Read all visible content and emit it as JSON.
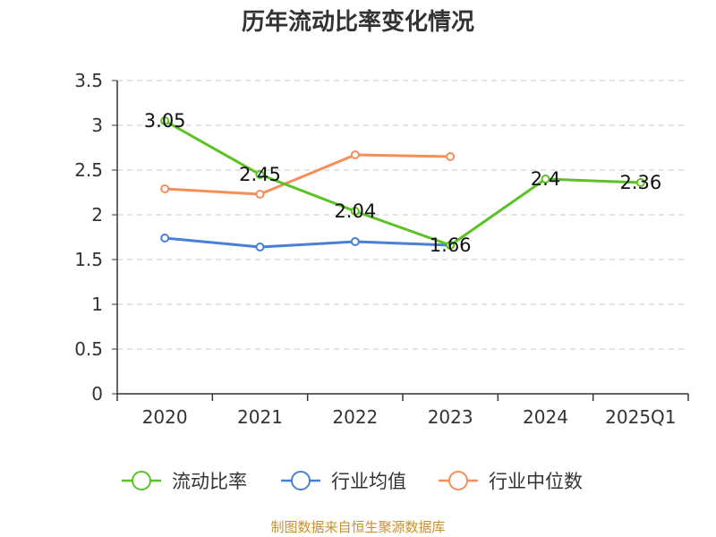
{
  "chart_data": {
    "type": "line",
    "title": "历年流动比率变化情况",
    "categories": [
      "2020",
      "2021",
      "2022",
      "2023",
      "2024",
      "2025Q1"
    ],
    "ylim": [
      0,
      3.5
    ],
    "yticks": [
      "0",
      "0.5",
      "1",
      "1.5",
      "2",
      "2.5",
      "3",
      "3.5"
    ],
    "grid": true,
    "legend_position": "bottom",
    "series": [
      {
        "name": "流动比率",
        "color": "#5bc223",
        "values": [
          3.05,
          2.45,
          2.04,
          1.66,
          2.4,
          2.36
        ],
        "labels": [
          "3.05",
          "2.45",
          "2.04",
          "1.66",
          "2.4",
          "2.36"
        ]
      },
      {
        "name": "行业均值",
        "color": "#4a7fd8",
        "values": [
          1.74,
          1.64,
          1.7,
          1.66,
          null,
          null
        ]
      },
      {
        "name": "行业中位数",
        "color": "#f58e58",
        "values": [
          2.29,
          2.23,
          2.67,
          2.65,
          null,
          null
        ]
      }
    ],
    "source": "制图数据来自恒生聚源数据库"
  }
}
